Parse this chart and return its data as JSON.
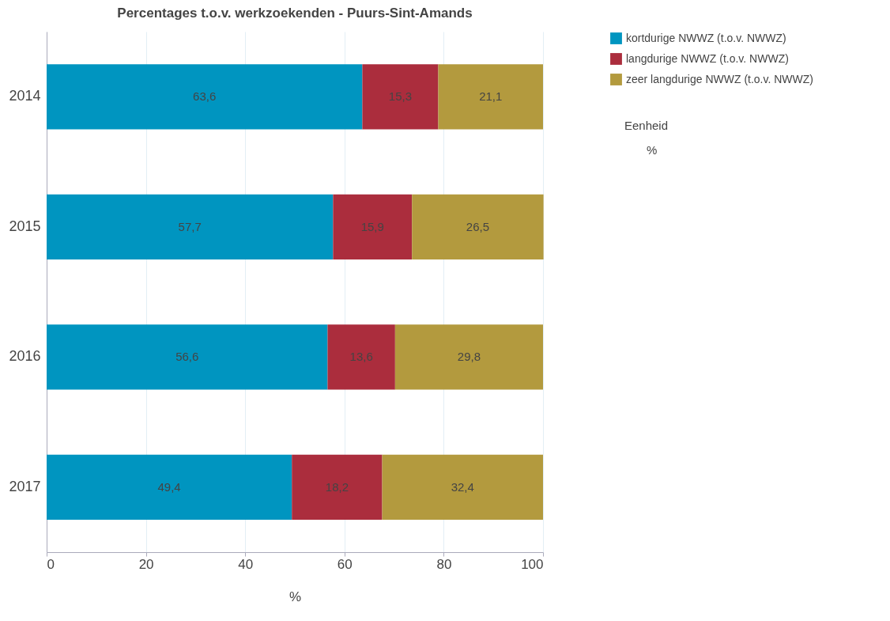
{
  "chart_data": {
    "type": "bar",
    "orientation": "horizontal",
    "stacked": true,
    "title": "Percentages t.o.v. werkzoekenden - Puurs-Sint-Amands",
    "xlabel": "%",
    "categories": [
      "2014",
      "2015",
      "2016",
      "2017"
    ],
    "series": [
      {
        "name": "kortdurige NWWZ (t.o.v. NWWZ)",
        "color": "#0095c0",
        "values": [
          63.6,
          57.7,
          56.6,
          49.4
        ],
        "value_labels": [
          "63,6",
          "57,7",
          "56,6",
          "49,4"
        ]
      },
      {
        "name": "langdurige NWWZ (t.o.v. NWWZ)",
        "color": "#ab2d3d",
        "values": [
          15.3,
          15.9,
          13.6,
          18.2
        ],
        "value_labels": [
          "15,3",
          "15,9",
          "13,6",
          "18,2"
        ]
      },
      {
        "name": "zeer langdurige NWWZ (t.o.v. NWWZ)",
        "color": "#b39a3e",
        "values": [
          21.1,
          26.5,
          29.8,
          32.4
        ],
        "value_labels": [
          "21,1",
          "26,5",
          "29,8",
          "32,4"
        ]
      }
    ],
    "xlim": [
      0,
      100
    ],
    "xticks": [
      0,
      20,
      40,
      60,
      80,
      100
    ],
    "grid": "x",
    "legend": "top right",
    "annotations": [
      "Eenheid",
      "%"
    ]
  }
}
